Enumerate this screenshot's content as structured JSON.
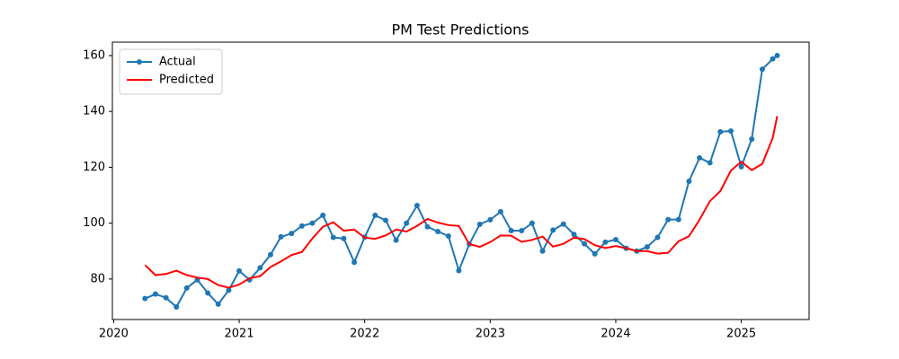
{
  "chart_data": {
    "type": "line",
    "title": "PM Test Predictions",
    "x": [
      2020.25,
      2020.333,
      2020.417,
      2020.5,
      2020.583,
      2020.667,
      2020.75,
      2020.833,
      2020.917,
      2021.0,
      2021.083,
      2021.167,
      2021.25,
      2021.333,
      2021.417,
      2021.5,
      2021.583,
      2021.667,
      2021.75,
      2021.833,
      2021.917,
      2022.0,
      2022.083,
      2022.167,
      2022.25,
      2022.333,
      2022.417,
      2022.5,
      2022.583,
      2022.667,
      2022.75,
      2022.833,
      2022.917,
      2023.0,
      2023.083,
      2023.167,
      2023.25,
      2023.333,
      2023.417,
      2023.5,
      2023.583,
      2023.667,
      2023.75,
      2023.833,
      2023.917,
      2024.0,
      2024.083,
      2024.167,
      2024.25,
      2024.333,
      2024.417,
      2024.5,
      2024.583,
      2024.667,
      2024.75,
      2024.833,
      2024.917,
      2025.0,
      2025.083,
      2025.167,
      2025.25,
      2025.286
    ],
    "series": [
      {
        "name": "Actual",
        "color": "#1f77b4",
        "marker": true,
        "values": [
          73,
          74.6,
          73.3,
          70,
          76.8,
          79.7,
          75,
          71,
          76,
          82.9,
          79.7,
          84,
          88.7,
          95.1,
          96.3,
          99,
          100,
          102.8,
          94.9,
          94.5,
          86,
          95,
          102.8,
          101,
          93.9,
          100,
          106.3,
          98.7,
          97,
          95.4,
          83,
          92.5,
          99.6,
          101.2,
          104.1,
          97.3,
          97.3,
          100,
          90,
          97.5,
          99.7,
          96,
          92.6,
          89,
          93.2,
          94.1,
          91,
          90,
          91.5,
          94.9,
          101.3,
          101.3,
          115,
          123.4,
          121.6,
          132.7,
          133,
          120.2,
          130.1,
          155.1,
          158.8,
          160
        ]
      },
      {
        "name": "Predicted",
        "color": "#ff0000",
        "marker": false,
        "values": [
          85,
          81.4,
          81.8,
          83,
          81.4,
          80.5,
          80,
          77.8,
          76.9,
          78,
          80.3,
          81,
          84.3,
          86.3,
          88.6,
          89.7,
          94.5,
          98.7,
          100.3,
          97.3,
          97.7,
          94.8,
          94.4,
          95.6,
          97.7,
          97,
          99,
          101.5,
          100.2,
          99.3,
          99,
          92.5,
          91.5,
          93.2,
          95.6,
          95.5,
          93.3,
          94,
          95.2,
          91.6,
          92.6,
          94.8,
          94.3,
          92.1,
          91.1,
          91.8,
          91,
          90,
          90,
          89.1,
          89.4,
          93.5,
          95.3,
          101.2,
          107.9,
          111.5,
          118.8,
          122,
          119,
          121.2,
          130.5,
          138.3
        ]
      }
    ],
    "xlim": [
      2019.99,
      2025.54
    ],
    "xticks": [
      2020,
      2021,
      2022,
      2023,
      2024,
      2025
    ],
    "ylim": [
      65.5,
      164.8
    ],
    "yticks": [
      80,
      100,
      120,
      140,
      160
    ],
    "grid": false,
    "legend": "upper left"
  }
}
